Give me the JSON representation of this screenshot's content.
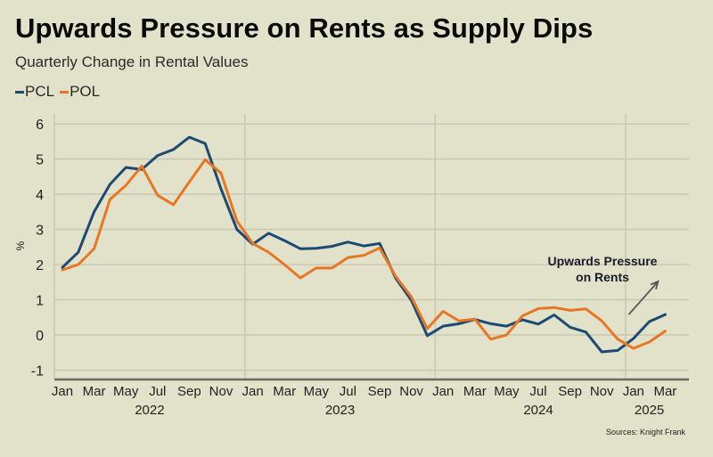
{
  "header": {
    "title": "Upwards Pressure on Rents as Supply Dips",
    "subtitle": "Quarterly Change in Rental Values"
  },
  "source": "Sources: Knight Frank",
  "colors": {
    "background": "#e2e1c9",
    "PCL": "#1b4a72",
    "POL": "#e87722",
    "grid": "#c9c8b2",
    "axis": "#6b6b60",
    "arrow": "#555555"
  },
  "chart_data": {
    "type": "line",
    "title": "Upwards Pressure on Rents as Supply Dips",
    "subtitle": "Quarterly Change in Rental Values",
    "xlabel": "",
    "ylabel": "%",
    "ylim": [
      -1.25,
      6.2
    ],
    "yticks": [
      -1,
      0,
      1,
      2,
      3,
      4,
      5,
      6
    ],
    "grid": true,
    "legend_position": "top-left",
    "x": [
      "Jan 2022",
      "Feb 2022",
      "Mar 2022",
      "Apr 2022",
      "May 2022",
      "Jun 2022",
      "Jul 2022",
      "Aug 2022",
      "Sep 2022",
      "Oct 2022",
      "Nov 2022",
      "Dec 2022",
      "Jan 2023",
      "Feb 2023",
      "Mar 2023",
      "Apr 2023",
      "May 2023",
      "Jun 2023",
      "Jul 2023",
      "Aug 2023",
      "Sep 2023",
      "Oct 2023",
      "Nov 2023",
      "Dec 2023",
      "Jan 2024",
      "Feb 2024",
      "Mar 2024",
      "Apr 2024",
      "May 2024",
      "Jun 2024",
      "Jul 2024",
      "Aug 2024",
      "Sep 2024",
      "Oct 2024",
      "Nov 2024",
      "Dec 2024",
      "Jan 2025",
      "Feb 2025",
      "Mar 2025"
    ],
    "month_tick_labels": [
      "Jan",
      "Mar",
      "May",
      "Jul",
      "Sep",
      "Nov",
      "Jan",
      "Mar",
      "May",
      "Jul",
      "Sep",
      "Nov",
      "Jan",
      "Mar",
      "May",
      "Jul",
      "Sep",
      "Nov",
      "Jan",
      "Mar"
    ],
    "month_tick_indices": [
      0,
      2,
      4,
      6,
      8,
      10,
      12,
      14,
      16,
      18,
      20,
      22,
      24,
      26,
      28,
      30,
      32,
      34,
      36,
      38
    ],
    "year_labels": [
      {
        "label": "2022",
        "center_index": 5.5
      },
      {
        "label": "2023",
        "center_index": 17.5
      },
      {
        "label": "2024",
        "center_index": 30
      },
      {
        "label": "2025",
        "center_index": 37
      }
    ],
    "year_boundaries": [
      11.5,
      23.5,
      35.5
    ],
    "series": [
      {
        "name": "PCL",
        "color": "#1b4a72",
        "values": [
          1.92,
          2.35,
          3.5,
          4.28,
          4.76,
          4.7,
          5.1,
          5.27,
          5.62,
          5.44,
          4.15,
          3.0,
          2.58,
          2.89,
          2.68,
          2.45,
          2.46,
          2.52,
          2.64,
          2.53,
          2.6,
          1.62,
          0.98,
          -0.02,
          0.25,
          0.32,
          0.44,
          0.32,
          0.25,
          0.43,
          0.31,
          0.57,
          0.22,
          0.08,
          -0.48,
          -0.44,
          -0.1,
          0.38,
          0.58
        ]
      },
      {
        "name": "POL",
        "color": "#e87722",
        "values": [
          1.85,
          2.0,
          2.45,
          3.85,
          4.25,
          4.8,
          3.97,
          3.7,
          4.35,
          4.98,
          4.6,
          3.24,
          2.6,
          2.35,
          2.0,
          1.62,
          1.9,
          1.9,
          2.2,
          2.26,
          2.47,
          1.67,
          1.08,
          0.18,
          0.67,
          0.4,
          0.45,
          -0.12,
          0.0,
          0.54,
          0.75,
          0.78,
          0.7,
          0.74,
          0.4,
          -0.12,
          -0.38,
          -0.2,
          0.11
        ]
      }
    ],
    "annotations": [
      {
        "text_lines": [
          "Upwards Pressure",
          "on Rents"
        ],
        "arrow": {
          "from": {
            "index": 35.7,
            "value": 0.58
          },
          "to": {
            "index": 38,
            "value": 1.52
          }
        }
      }
    ]
  }
}
